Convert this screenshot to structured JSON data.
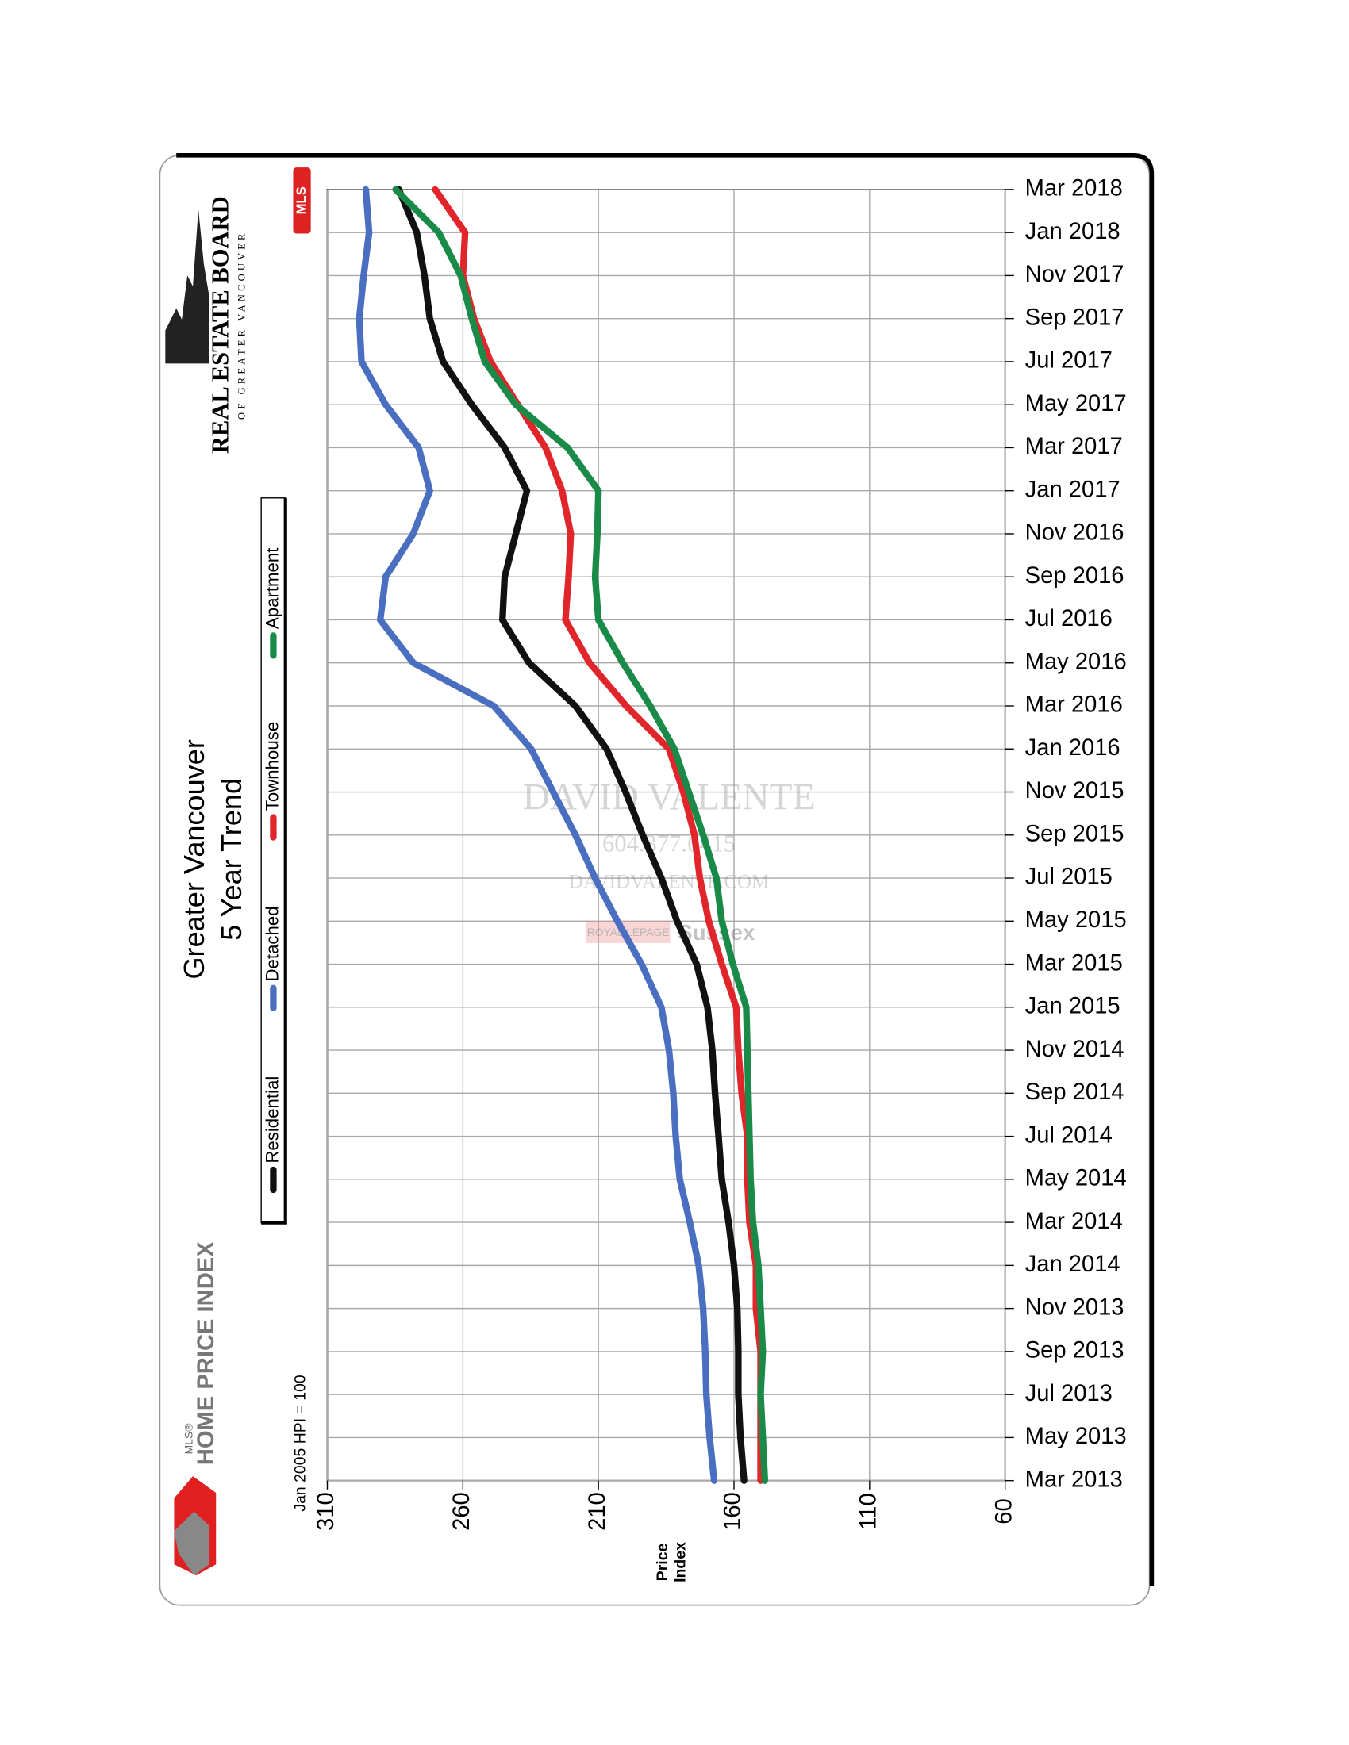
{
  "chart_data": {
    "type": "line",
    "title": "Greater Vancouver",
    "subtitle": "5 Year Trend",
    "note": "Jan 2005 HPI = 100",
    "x_label": "Price Index",
    "orientation": "horizontal",
    "categories": [
      "Mar 2013",
      "May 2013",
      "Jul 2013",
      "Sep 2013",
      "Nov 2013",
      "Jan 2014",
      "Mar 2014",
      "May 2014",
      "Jul 2014",
      "Sep 2014",
      "Nov 2014",
      "Jan 2015",
      "Mar 2015",
      "May 2015",
      "Jul 2015",
      "Sep 2015",
      "Nov 2015",
      "Jan 2016",
      "Mar 2016",
      "May 2016",
      "Jul 2016",
      "Sep 2016",
      "Nov 2016",
      "Jan 2017",
      "Mar 2017",
      "May 2017",
      "Jul 2017",
      "Sep 2017",
      "Nov 2017",
      "Jan 2018",
      "Mar 2018"
    ],
    "series": [
      {
        "name": "Residential",
        "color": "#111111",
        "values": [
          156.3,
          157.6,
          158.4,
          158.4,
          158.8,
          160,
          162,
          164.5,
          165.7,
          167,
          168,
          169.8,
          173.8,
          181,
          186.8,
          193.7,
          200,
          207,
          218.5,
          235.6,
          245.4,
          244.6,
          240.5,
          236.4,
          244.6,
          256.7,
          267.3,
          272.2,
          274.2,
          277,
          283.6
        ]
      },
      {
        "name": "Detached",
        "color": "#4a6fc0",
        "values": [
          167.3,
          169,
          170.2,
          170.6,
          171.4,
          173,
          176.3,
          180,
          181.5,
          182.4,
          184,
          186.8,
          194.1,
          203,
          211.2,
          218.5,
          226.7,
          234.8,
          248.6,
          278.3,
          290.5,
          288.5,
          278.3,
          272.2,
          276.3,
          288.5,
          297.4,
          298.2,
          296.6,
          294.6,
          295.8
        ]
      },
      {
        "name": "Townhouse",
        "color": "#e0262b",
        "values": [
          150.2,
          150.2,
          150.2,
          150.2,
          151.9,
          151.9,
          154.3,
          155.1,
          155.1,
          157.2,
          158.4,
          159.2,
          164.5,
          169.3,
          172.6,
          174.6,
          178.7,
          184,
          199.8,
          213.3,
          222.2,
          221,
          220.2,
          223.4,
          229.5,
          239.7,
          249.8,
          255.9,
          260,
          259.2,
          270.2
        ]
      },
      {
        "name": "Apartment",
        "color": "#1a8a48",
        "values": [
          148.6,
          149.4,
          150.2,
          149.4,
          150.2,
          151,
          153,
          153.9,
          154.3,
          154.7,
          155.1,
          155.5,
          160.4,
          164.5,
          166.5,
          171.4,
          176.7,
          182,
          190.9,
          201,
          210,
          211.2,
          210.4,
          210,
          221.4,
          240.5,
          251.9,
          256.7,
          260.8,
          268.9,
          284.8
        ]
      }
    ],
    "xlim": [
      310,
      60
    ],
    "xticks": [
      310,
      260,
      210,
      160,
      110,
      60
    ],
    "grid": true
  },
  "branding": {
    "board_name": "REAL ESTATE BOARD",
    "board_region": "OF GREATER VANCOUVER",
    "hpi_small": "MLS®",
    "hpi_name": "HOME PRICE INDEX",
    "mls": "MLS",
    "watermark_name": "DAVID VALENTE",
    "watermark_phone": "604.377.6415",
    "watermark_site": "DAVIDVALENTE.COM",
    "watermark_brokerage": "ROYAL LEPAGE",
    "watermark_office": "Sussex"
  }
}
